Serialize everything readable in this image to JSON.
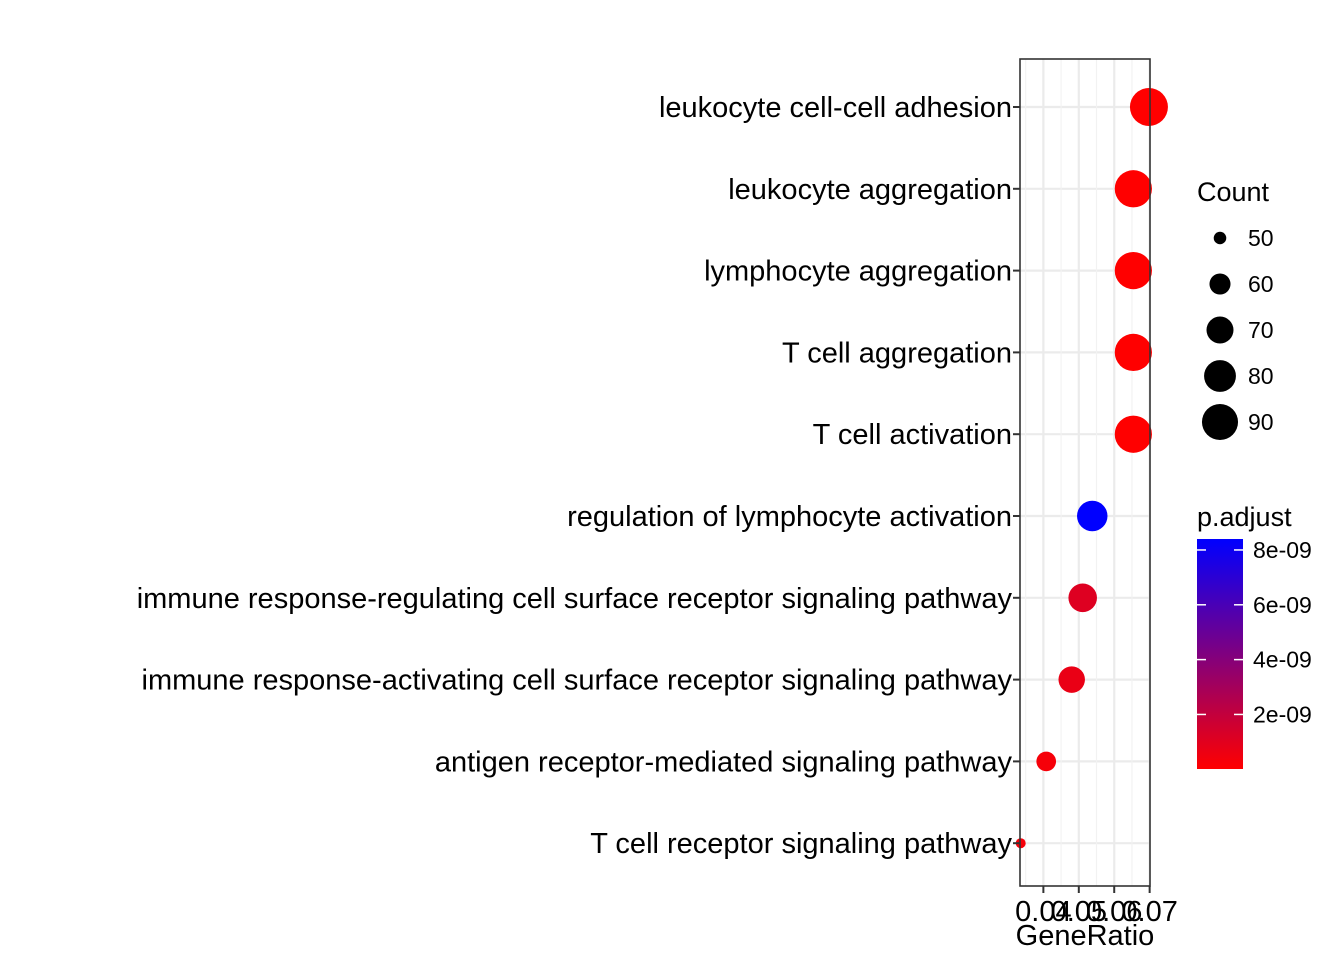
{
  "chart_data": {
    "type": "scatter",
    "xlabel": "GeneRatio",
    "ylabel": "",
    "x_ticks": [
      0.04,
      0.05,
      0.06,
      0.07
    ],
    "x_tick_labels": [
      "0.04",
      "0.05",
      "0.06",
      "0.07"
    ],
    "xlim": [
      0.0334,
      0.0701
    ],
    "grid": true,
    "categories": [
      "leukocyte cell-cell adhesion",
      "leukocyte aggregation",
      "lymphocyte aggregation",
      "T cell aggregation",
      "T cell activation",
      "regulation of lymphocyte activation",
      "immune response-regulating cell surface receptor signaling pathway",
      "immune response-activating cell surface receptor signaling pathway",
      "antigen receptor-mediated signaling pathway",
      "T cell receptor signaling pathway"
    ],
    "points": [
      {
        "term": "leukocyte cell-cell adhesion",
        "gene_ratio": 0.0698,
        "count": 95,
        "p_adjust": 1e-11
      },
      {
        "term": "leukocyte aggregation",
        "gene_ratio": 0.0654,
        "count": 93,
        "p_adjust": 1e-11
      },
      {
        "term": "lymphocyte aggregation",
        "gene_ratio": 0.0654,
        "count": 93,
        "p_adjust": 1e-11
      },
      {
        "term": "T cell aggregation",
        "gene_ratio": 0.0654,
        "count": 93,
        "p_adjust": 1e-11
      },
      {
        "term": "T cell activation",
        "gene_ratio": 0.0654,
        "count": 93,
        "p_adjust": 1e-11
      },
      {
        "term": "regulation of lymphocyte activation",
        "gene_ratio": 0.0538,
        "count": 77,
        "p_adjust": 8.4e-09
      },
      {
        "term": "immune response-regulating cell surface receptor signaling pathway",
        "gene_ratio": 0.0511,
        "count": 73,
        "p_adjust": 1.1e-09
      },
      {
        "term": "immune response-activating cell surface receptor signaling pathway",
        "gene_ratio": 0.048,
        "count": 69,
        "p_adjust": 7e-10
      },
      {
        "term": "antigen receptor-mediated signaling pathway",
        "gene_ratio": 0.0408,
        "count": 58,
        "p_adjust": 3e-10
      },
      {
        "term": "T cell receptor signaling pathway",
        "gene_ratio": 0.0336,
        "count": 48,
        "p_adjust": 3e-10
      }
    ],
    "size_legend": {
      "title": "Count",
      "values": [
        50,
        60,
        70,
        80,
        90
      ],
      "labels": [
        "50",
        "60",
        "70",
        "80",
        "90"
      ]
    },
    "color_legend": {
      "title": "p.adjust",
      "low_color": "#FF0000",
      "high_color": "#0000FF",
      "range": [
        1e-11,
        8.4e-09
      ],
      "ticks": [
        8e-09,
        6e-09,
        4e-09,
        2e-09
      ],
      "tick_labels": [
        "8e-09",
        "6e-09",
        "4e-09",
        "2e-09"
      ]
    }
  }
}
